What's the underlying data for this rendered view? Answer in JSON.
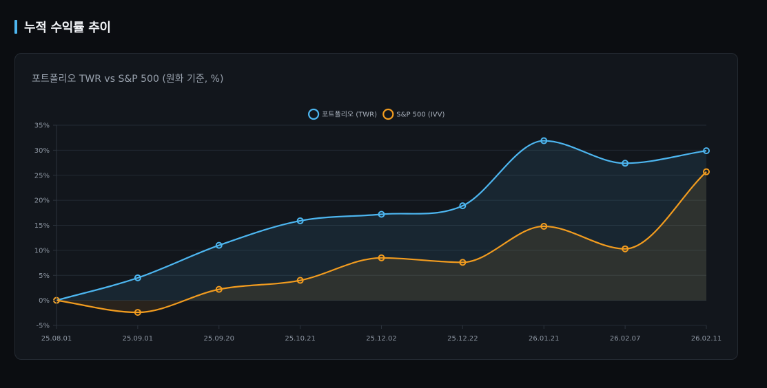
{
  "header": {
    "title": "누적 수익률 추이"
  },
  "chart_data": {
    "type": "line",
    "title": "포트폴리오 TWR vs S&P 500 (원화 기준, %)",
    "xlabel": "",
    "ylabel": "",
    "categories": [
      "25.08.01",
      "25.09.01",
      "25.09.20",
      "25.10.21",
      "25.12.02",
      "25.12.22",
      "26.01.21",
      "26.02.07",
      "26.02.11"
    ],
    "ylim": [
      -5,
      35
    ],
    "yticks": [
      -5,
      0,
      5,
      10,
      15,
      20,
      25,
      30,
      35
    ],
    "ytick_suffix": "%",
    "legend_position": "top-center",
    "grid": true,
    "series": [
      {
        "name": "포트폴리오 (TWR)",
        "color": "#4db6f0",
        "values": [
          0,
          4.5,
          11,
          15.9,
          17.2,
          18.9,
          31.9,
          27.4,
          29.9
        ]
      },
      {
        "name": "S&P 500 (IVV)",
        "color": "#f29c1f",
        "values": [
          0,
          -2.4,
          2.2,
          4,
          8.5,
          7.6,
          14.8,
          10.3,
          25.7
        ]
      }
    ]
  }
}
